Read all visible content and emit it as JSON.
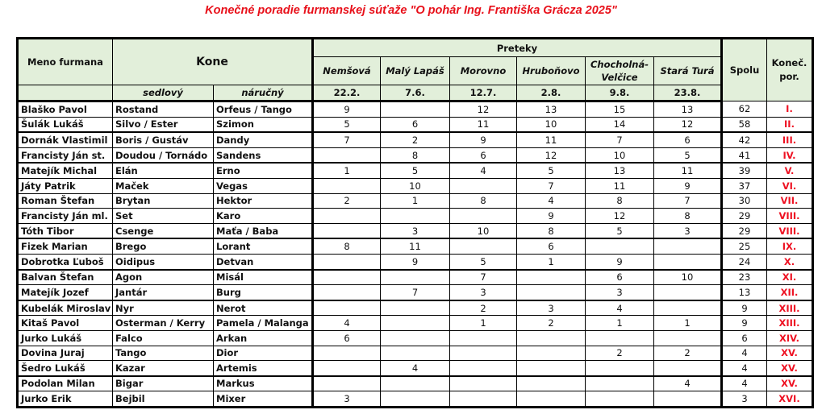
{
  "title": "Konečné poradie furmanskej súťaže \"O pohár Ing. Františka Grácza 2025\"",
  "header": {
    "driver": "Meno furmana",
    "horses": "Kone",
    "horse_saddle": "sedlový",
    "horse_hand": "náručný",
    "races": "Preteky",
    "total": "Spolu",
    "final_rank": "Koneč. por.",
    "race_columns": [
      {
        "name": "Nemšová",
        "date": "22.2."
      },
      {
        "name": "Malý Lapáš",
        "date": "7.6."
      },
      {
        "name": "Morovno",
        "date": "12.7."
      },
      {
        "name": "Hruboňovo",
        "date": "2.8."
      },
      {
        "name": "Chocholná-Velčice",
        "date": "9.8."
      },
      {
        "name": "Stará Turá",
        "date": "23.8."
      }
    ]
  },
  "colors": {
    "header_bg": "#e2efda",
    "title": "#e8101a",
    "rank": "#ee1122"
  },
  "rows": [
    {
      "driver": "Blaško Pavol",
      "saddle": "Rostand",
      "hand": "Orfeus / Tango",
      "scores": [
        "9",
        "",
        "12",
        "13",
        "15",
        "13"
      ],
      "total": "62",
      "rank": "I."
    },
    {
      "driver": "Šulák Lukáš",
      "saddle": "Silvo / Ester",
      "hand": "Szimon",
      "scores": [
        "5",
        "6",
        "11",
        "10",
        "14",
        "12"
      ],
      "total": "58",
      "rank": "II."
    },
    {
      "driver": "Dornák Vlastimil",
      "saddle": "Boris / Gustáv",
      "hand": "Dandy",
      "scores": [
        "7",
        "2",
        "9",
        "11",
        "7",
        "6"
      ],
      "total": "42",
      "rank": "III."
    },
    {
      "driver": "Francisty Ján st.",
      "saddle": "Doudou / Tornádo",
      "hand": "Sandens",
      "scores": [
        "",
        "8",
        "6",
        "12",
        "10",
        "5"
      ],
      "total": "41",
      "rank": "IV."
    },
    {
      "driver": "Matejík Michal",
      "saddle": "Elán",
      "hand": "Erno",
      "scores": [
        "1",
        "5",
        "4",
        "5",
        "13",
        "11"
      ],
      "total": "39",
      "rank": "V."
    },
    {
      "driver": "Játy Patrik",
      "saddle": "Maček",
      "hand": "Vegas",
      "scores": [
        "",
        "10",
        "",
        "7",
        "11",
        "9"
      ],
      "total": "37",
      "rank": "VI."
    },
    {
      "driver": "Roman Štefan",
      "saddle": "Brytan",
      "hand": "Hektor",
      "scores": [
        "2",
        "1",
        "8",
        "4",
        "8",
        "7"
      ],
      "total": "30",
      "rank": "VII."
    },
    {
      "driver": "Francisty Ján ml.",
      "saddle": "Set",
      "hand": "Karo",
      "scores": [
        "",
        "",
        "",
        "9",
        "12",
        "8"
      ],
      "total": "29",
      "rank": "VIII."
    },
    {
      "driver": "Tóth Tibor",
      "saddle": "Csenge",
      "hand": "Maťa / Baba",
      "scores": [
        "",
        "3",
        "10",
        "8",
        "5",
        "3"
      ],
      "total": "29",
      "rank": "VIII."
    },
    {
      "driver": "Fizek Marian",
      "saddle": "Brego",
      "hand": "Lorant",
      "scores": [
        "8",
        "11",
        "",
        "6",
        "",
        ""
      ],
      "total": "25",
      "rank": "IX."
    },
    {
      "driver": "Dobrotka Ľuboš",
      "saddle": "Oidipus",
      "hand": "Detvan",
      "scores": [
        "",
        "9",
        "5",
        "1",
        "9",
        ""
      ],
      "total": "24",
      "rank": "X."
    },
    {
      "driver": "Balvan Štefan",
      "saddle": "Agon",
      "hand": "Misál",
      "scores": [
        "",
        "",
        "7",
        "",
        "6",
        "10"
      ],
      "total": "23",
      "rank": "XI."
    },
    {
      "driver": "Matejík Jozef",
      "saddle": "Jantár",
      "hand": "Burg",
      "scores": [
        "",
        "7",
        "3",
        "",
        "3",
        ""
      ],
      "total": "13",
      "rank": "XII."
    },
    {
      "driver": "Kubelák Miroslav",
      "saddle": "Nyr",
      "hand": "Nerot",
      "scores": [
        "",
        "",
        "2",
        "3",
        "4",
        ""
      ],
      "total": "9",
      "rank": "XIII."
    },
    {
      "driver": "Kitaš Pavol",
      "saddle": "Osterman / Kerry",
      "hand": "Pamela / Malanga",
      "scores": [
        "4",
        "",
        "1",
        "2",
        "1",
        "1"
      ],
      "total": "9",
      "rank": "XIII."
    },
    {
      "driver": "Jurko Lukáš",
      "saddle": "Falco",
      "hand": "Arkan",
      "scores": [
        "6",
        "",
        "",
        "",
        "",
        ""
      ],
      "total": "6",
      "rank": "XIV."
    },
    {
      "driver": "Dovina Juraj",
      "saddle": "Tango",
      "hand": "Dior",
      "scores": [
        "",
        "",
        "",
        "",
        "2",
        "2"
      ],
      "total": "4",
      "rank": "XV."
    },
    {
      "driver": "Šedro Lukáš",
      "saddle": "Kazar",
      "hand": "Artemis",
      "scores": [
        "",
        "4",
        "",
        "",
        "",
        ""
      ],
      "total": "4",
      "rank": "XV."
    },
    {
      "driver": "Podolan Milan",
      "saddle": "Bigar",
      "hand": "Markus",
      "scores": [
        "",
        "",
        "",
        "",
        "",
        "4"
      ],
      "total": "4",
      "rank": "XV."
    },
    {
      "driver": "Jurko Erik",
      "saddle": "Bejbil",
      "hand": "Mixer",
      "scores": [
        "3",
        "",
        "",
        "",
        "",
        ""
      ],
      "total": "3",
      "rank": "XVI."
    }
  ]
}
